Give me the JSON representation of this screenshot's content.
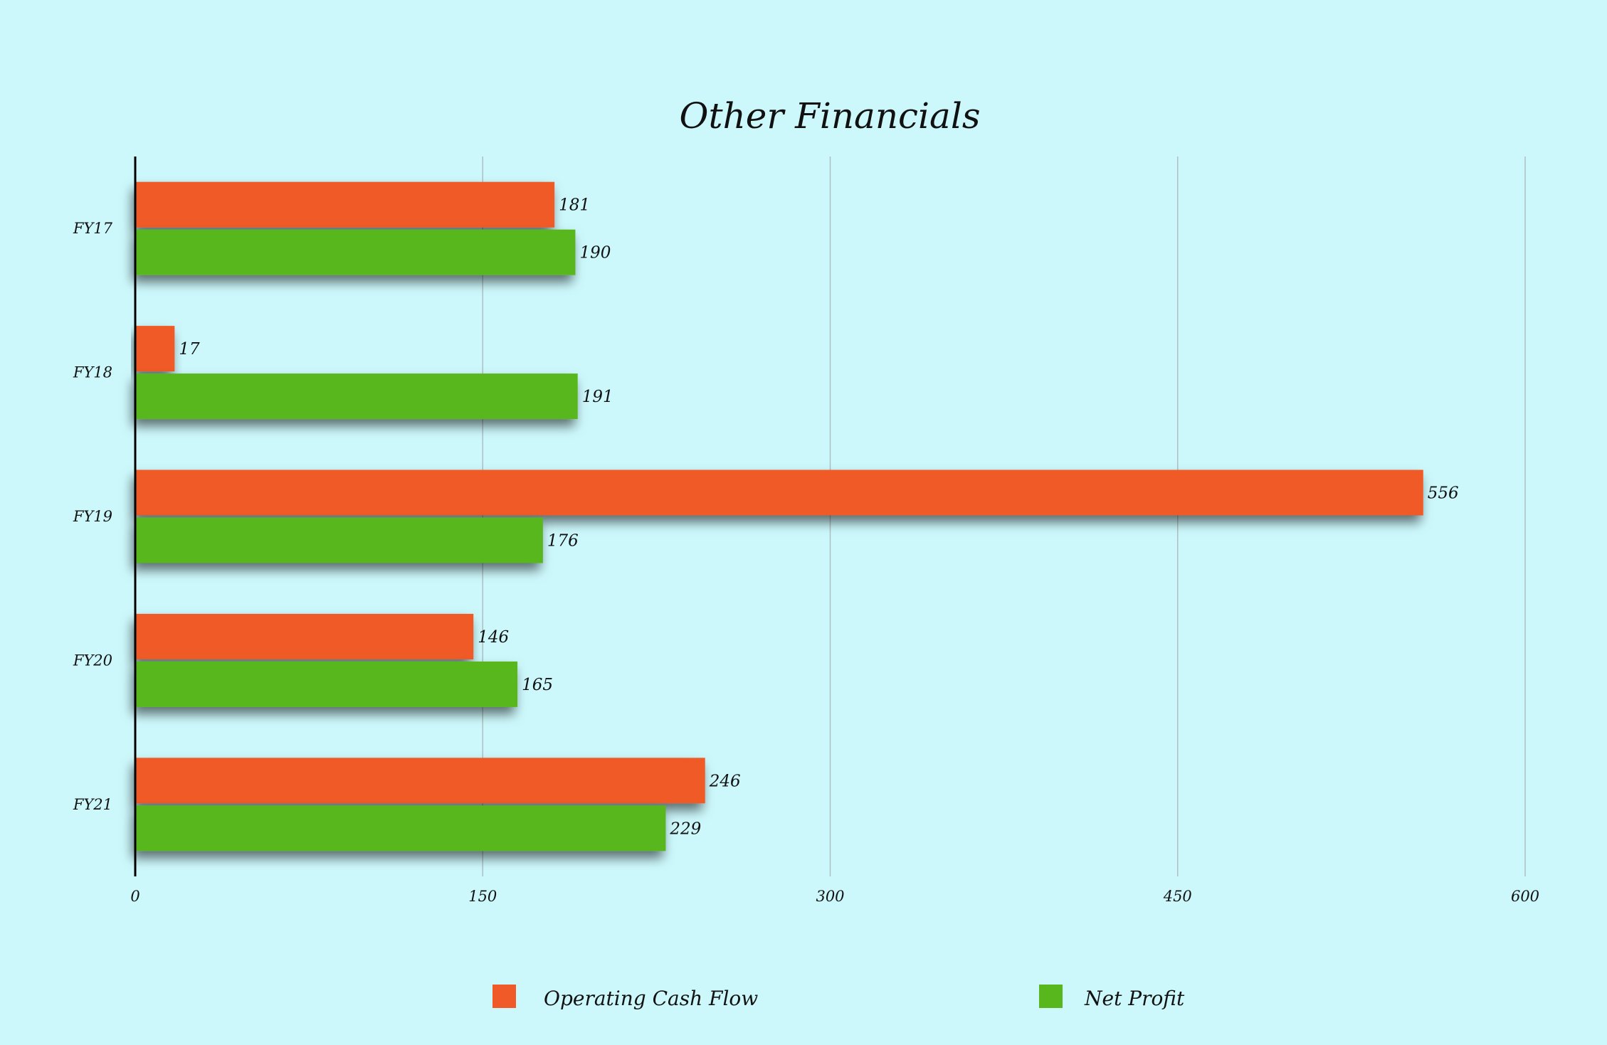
{
  "chart_data": {
    "type": "bar",
    "orientation": "horizontal",
    "title": "Other Financials",
    "xlabel": "",
    "ylabel": "",
    "categories": [
      "FY17",
      "FY18",
      "FY19",
      "FY20",
      "FY21"
    ],
    "series": [
      {
        "name": "Operating Cash Flow",
        "color": "#f05a28",
        "values": [
          181,
          17,
          556,
          146,
          246
        ]
      },
      {
        "name": "Net Profit",
        "color": "#58b71c",
        "values": [
          190,
          191,
          176,
          165,
          229
        ]
      }
    ],
    "xlim": [
      0,
      600
    ],
    "xticks": [
      "0",
      "150",
      "300",
      "450",
      "600"
    ],
    "grid": true,
    "data_labels": true,
    "legend_position": "bottom",
    "background": "#ccf8fc"
  }
}
